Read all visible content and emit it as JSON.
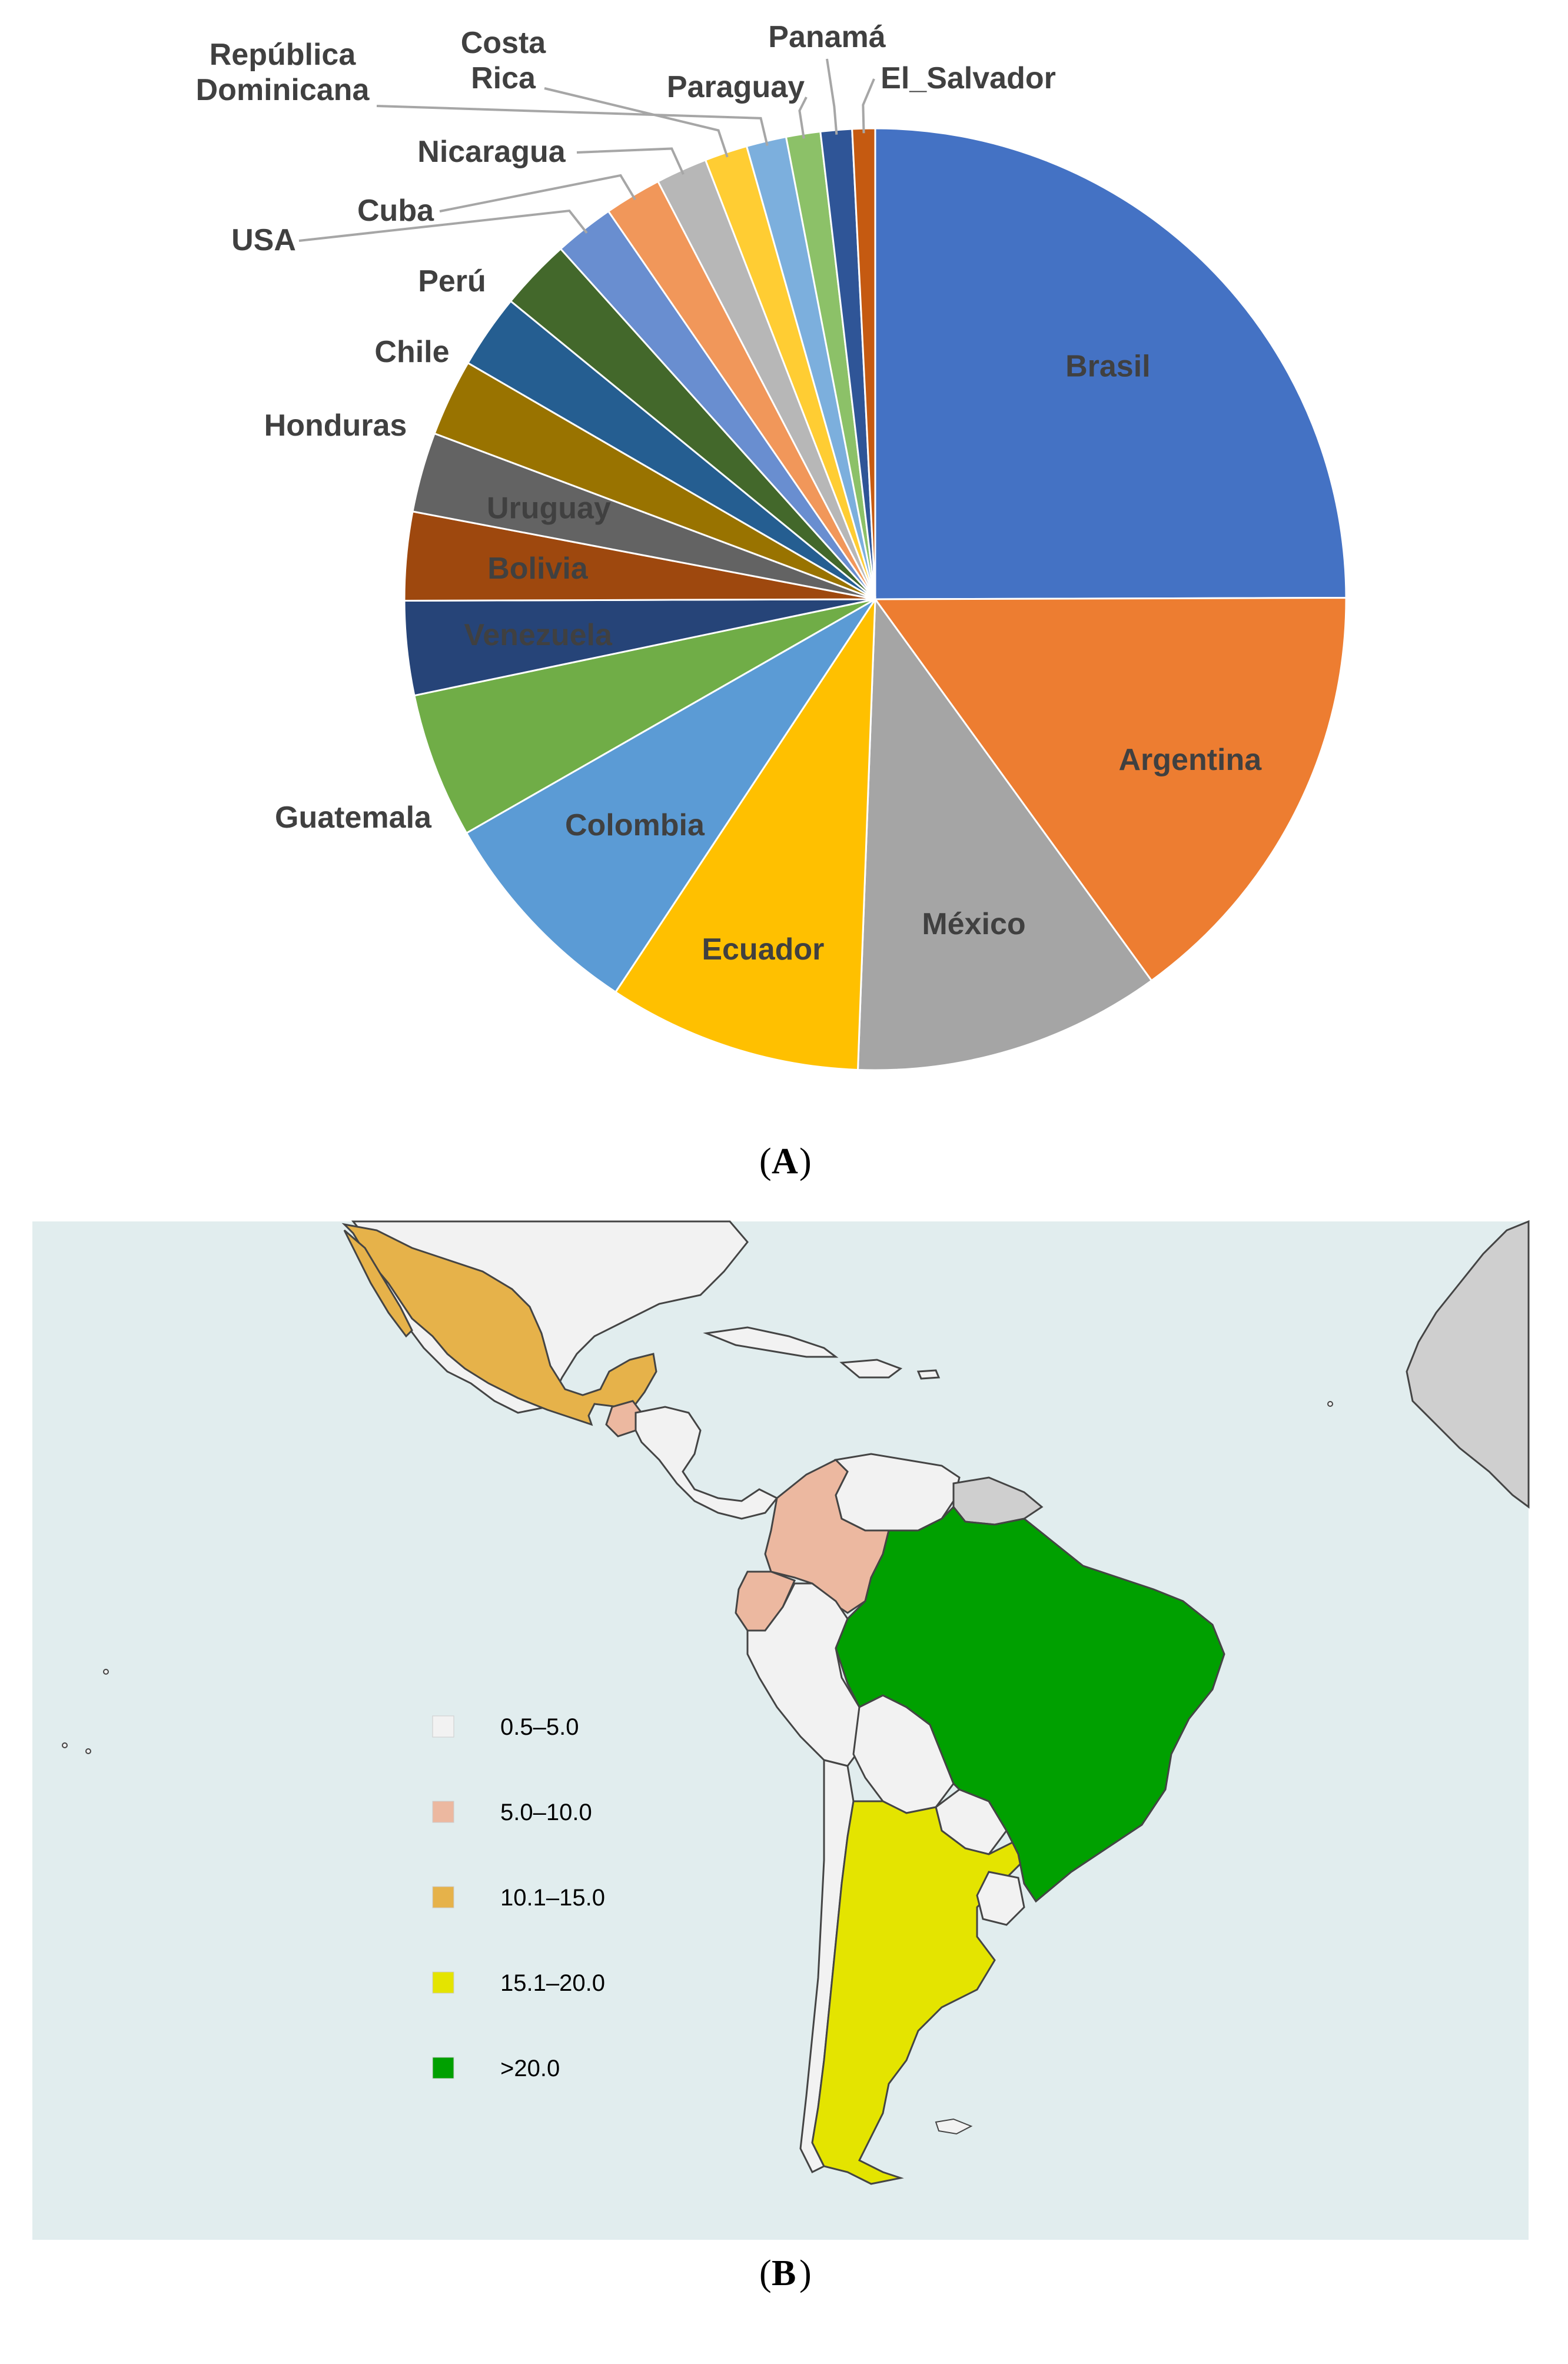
{
  "panels": {
    "a": "A",
    "b": "B"
  },
  "chart_data": [
    {
      "type": "pie",
      "title": "",
      "slices": [
        {
          "label": "Brasil",
          "value": 25.5,
          "color": "#4472C4"
        },
        {
          "label": "Argentina",
          "value": 15.4,
          "color": "#ED7D31"
        },
        {
          "label": "México",
          "value": 10.8,
          "color": "#A5A5A5"
        },
        {
          "label": "Ecuador",
          "value": 8.9,
          "color": "#FFC000"
        },
        {
          "label": "Colombia",
          "value": 7.6,
          "color": "#5B9BD5"
        },
        {
          "label": "Guatemala",
          "value": 5.1,
          "color": "#70AD47"
        },
        {
          "label": "Venezuela",
          "value": 3.3,
          "color": "#264478"
        },
        {
          "label": "Bolivia",
          "value": 3.1,
          "color": "#9E480E"
        },
        {
          "label": "Uruguay",
          "value": 2.8,
          "color": "#636363"
        },
        {
          "label": "Honduras",
          "value": 2.7,
          "color": "#997300"
        },
        {
          "label": "Chile",
          "value": 2.6,
          "color": "#255E91"
        },
        {
          "label": "Perú",
          "value": 2.5,
          "color": "#43682B"
        },
        {
          "label": "USA",
          "value": 2.1,
          "color": "#698ED0"
        },
        {
          "label": "Cuba",
          "value": 2.0,
          "color": "#F1975A"
        },
        {
          "label": "Nicaragua",
          "value": 1.8,
          "color": "#B7B7B7"
        },
        {
          "label": "Costa Rica",
          "value": 1.5,
          "color": "#FFCD33"
        },
        {
          "label": "República Dominicana",
          "value": 1.4,
          "color": "#7CAFDD"
        },
        {
          "label": "Paraguay",
          "value": 1.2,
          "color": "#8CC168"
        },
        {
          "label": "Panamá",
          "value": 1.1,
          "color": "#2F5597"
        },
        {
          "label": "El_Salvador",
          "value": 0.8,
          "color": "#C55A11"
        }
      ],
      "legend": "none"
    },
    {
      "type": "map",
      "legend_entries": [
        {
          "label": "0.5–5.0",
          "color": "#F2F2F2"
        },
        {
          "label": "5.0–10.0",
          "color": "#ECB8A0"
        },
        {
          "label": "10.1–15.0",
          "color": "#E6B24A"
        },
        {
          "label": "15.1–20.0",
          "color": "#E4E400"
        },
        {
          "label": ">20.0",
          "color": "#00A000"
        }
      ],
      "regions": [
        {
          "name": "Brasil",
          "class": ">20.0"
        },
        {
          "name": "Argentina",
          "class": "15.1–20.0"
        },
        {
          "name": "México",
          "class": "10.1–15.0"
        },
        {
          "name": "Colombia",
          "class": "5.0–10.0"
        },
        {
          "name": "Ecuador",
          "class": "5.0–10.0"
        },
        {
          "name": "Guatemala",
          "class": "5.0–10.0"
        }
      ],
      "colors": {
        "ocean": "#E1EDEE",
        "no_data": "#CFCFCF",
        "border": "#555555"
      }
    }
  ]
}
